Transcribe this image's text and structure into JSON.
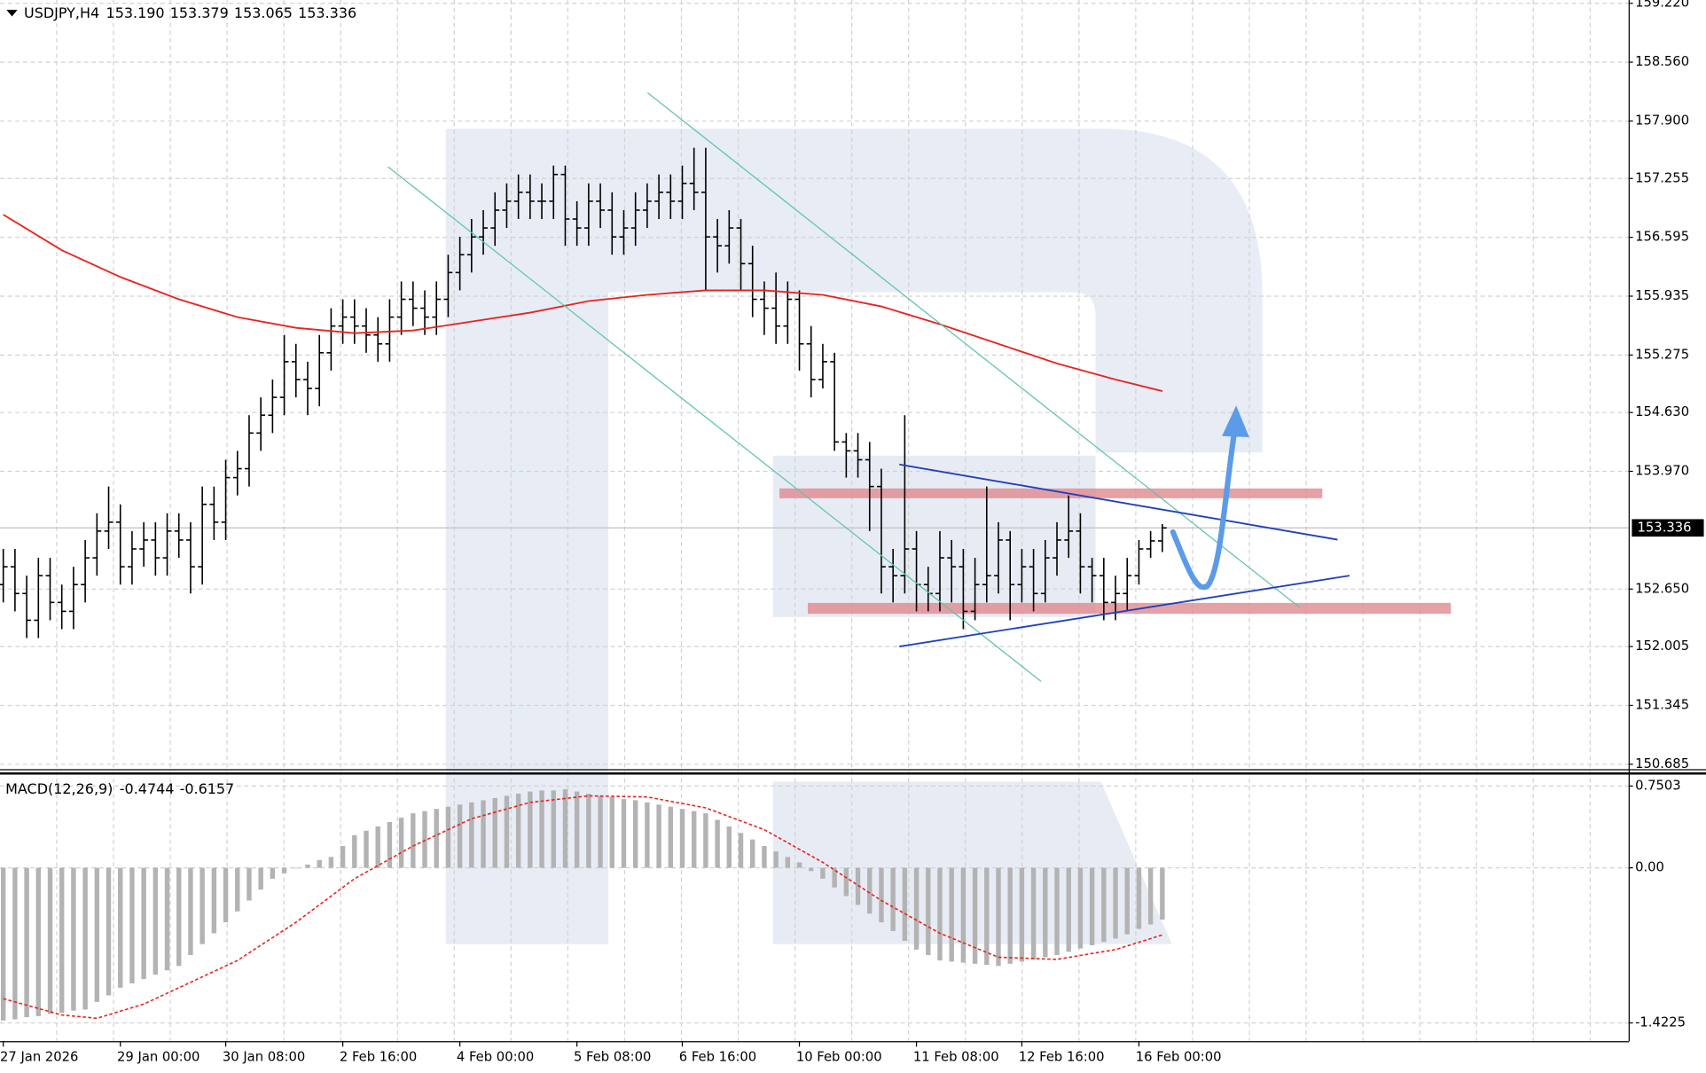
{
  "chart_data": [
    {
      "type": "ohlc",
      "symbol": "USDJPY,H4",
      "last_bar_labels": [
        "153.190",
        "153.379",
        "153.065",
        "153.336"
      ],
      "color": "#000000",
      "categories": [
        "27 Jan 2026",
        null,
        null,
        null,
        null,
        null,
        null,
        null,
        null,
        null,
        "29 Jan 00:00",
        null,
        null,
        null,
        null,
        null,
        null,
        null,
        null,
        "30 Jan 08:00",
        null,
        null,
        null,
        null,
        null,
        null,
        null,
        null,
        null,
        "2 Feb 16:00",
        null,
        null,
        null,
        null,
        null,
        null,
        null,
        null,
        null,
        "4 Feb 00:00",
        null,
        null,
        null,
        null,
        null,
        null,
        null,
        null,
        null,
        "5 Feb 08:00",
        null,
        null,
        null,
        null,
        null,
        null,
        null,
        null,
        "6 Feb 16:00",
        null,
        null,
        null,
        null,
        null,
        null,
        null,
        null,
        null,
        "10 Feb 00:00",
        null,
        null,
        null,
        null,
        null,
        null,
        null,
        null,
        null,
        "11 Feb 08:00",
        null,
        null,
        null,
        null,
        null,
        null,
        null,
        null,
        "12 Feb 16:00",
        null,
        null,
        null,
        null,
        null,
        null,
        null,
        null,
        null,
        "16 Feb 00:00",
        null,
        null
      ],
      "open": [
        152.7,
        152.9,
        152.6,
        152.3,
        152.8,
        152.5,
        152.4,
        152.7,
        153.0,
        153.3,
        153.4,
        152.9,
        153.1,
        153.2,
        153.0,
        153.3,
        153.2,
        152.9,
        153.6,
        153.4,
        153.9,
        154.0,
        154.4,
        154.6,
        154.8,
        155.2,
        155.0,
        154.9,
        155.3,
        155.6,
        155.7,
        155.6,
        155.5,
        155.4,
        155.7,
        155.9,
        155.8,
        155.7,
        155.9,
        156.2,
        156.4,
        156.6,
        156.7,
        156.9,
        157.0,
        157.1,
        157.0,
        157.0,
        157.3,
        156.8,
        156.7,
        157.0,
        156.9,
        156.6,
        156.7,
        156.9,
        157.0,
        157.1,
        157.0,
        157.2,
        157.1,
        156.6,
        156.5,
        156.7,
        156.3,
        155.9,
        155.8,
        155.6,
        155.9,
        155.4,
        155.0,
        155.2,
        154.3,
        154.2,
        154.1,
        153.8,
        152.9,
        152.8,
        153.1,
        152.7,
        152.6,
        153.0,
        152.9,
        152.4,
        152.7,
        152.8,
        153.2,
        152.7,
        152.9,
        152.6,
        153.0,
        153.2,
        153.3,
        152.9,
        152.8,
        152.5,
        152.6,
        152.8,
        153.1,
        153.19
      ],
      "high": [
        153.1,
        153.1,
        152.8,
        153.0,
        153.0,
        152.7,
        152.9,
        153.2,
        153.5,
        153.8,
        153.6,
        153.3,
        153.4,
        153.4,
        153.5,
        153.5,
        153.4,
        153.8,
        153.8,
        154.1,
        154.2,
        154.6,
        154.8,
        155.0,
        155.5,
        155.4,
        155.2,
        155.5,
        155.8,
        155.9,
        155.9,
        155.8,
        155.7,
        155.9,
        156.1,
        156.1,
        156.0,
        156.1,
        156.4,
        156.6,
        156.8,
        156.9,
        157.1,
        157.2,
        157.3,
        157.3,
        157.2,
        157.4,
        157.4,
        157.0,
        157.2,
        157.2,
        157.1,
        156.9,
        157.1,
        157.2,
        157.3,
        157.3,
        157.4,
        157.6,
        157.6,
        156.8,
        156.9,
        156.8,
        156.5,
        156.1,
        156.2,
        156.1,
        156.0,
        155.6,
        155.4,
        155.3,
        154.4,
        154.4,
        154.3,
        154.0,
        153.1,
        154.6,
        153.3,
        152.9,
        153.3,
        153.2,
        153.1,
        153.0,
        153.8,
        153.4,
        153.3,
        153.1,
        153.1,
        153.2,
        153.4,
        153.7,
        153.5,
        153.0,
        153.0,
        152.8,
        153.0,
        153.2,
        153.3,
        153.379
      ],
      "low": [
        152.5,
        152.4,
        152.1,
        152.1,
        152.3,
        152.2,
        152.2,
        152.5,
        152.8,
        153.1,
        152.7,
        152.7,
        152.9,
        152.8,
        152.8,
        153.0,
        152.6,
        152.7,
        153.2,
        153.2,
        153.7,
        153.8,
        154.2,
        154.4,
        154.6,
        154.8,
        154.6,
        154.7,
        155.1,
        155.4,
        155.4,
        155.3,
        155.2,
        155.2,
        155.5,
        155.6,
        155.5,
        155.5,
        155.7,
        156.0,
        156.2,
        156.4,
        156.5,
        156.7,
        156.8,
        156.8,
        156.8,
        156.8,
        156.5,
        156.5,
        156.5,
        156.7,
        156.4,
        156.4,
        156.5,
        156.7,
        156.8,
        156.8,
        156.8,
        156.9,
        156.0,
        156.2,
        156.3,
        156.0,
        155.7,
        155.5,
        155.4,
        155.4,
        155.1,
        154.8,
        154.9,
        154.2,
        153.9,
        153.9,
        153.3,
        152.6,
        152.5,
        152.6,
        152.4,
        152.4,
        152.4,
        152.5,
        152.2,
        152.3,
        152.5,
        152.6,
        152.3,
        152.5,
        152.4,
        152.5,
        152.8,
        153.0,
        152.6,
        152.5,
        152.3,
        152.3,
        152.4,
        152.7,
        153.0,
        153.065
      ],
      "close": [
        152.9,
        152.6,
        152.3,
        152.8,
        152.5,
        152.4,
        152.7,
        153.0,
        153.3,
        153.4,
        152.9,
        153.1,
        153.2,
        153.0,
        153.3,
        153.2,
        152.9,
        153.6,
        153.4,
        153.9,
        154.0,
        154.4,
        154.6,
        154.8,
        155.2,
        155.0,
        154.9,
        155.3,
        155.6,
        155.7,
        155.6,
        155.5,
        155.4,
        155.7,
        155.9,
        155.8,
        155.7,
        155.9,
        156.2,
        156.4,
        156.6,
        156.7,
        156.9,
        157.0,
        157.1,
        157.0,
        157.0,
        157.3,
        156.8,
        156.7,
        157.0,
        156.9,
        156.6,
        156.7,
        156.9,
        157.0,
        157.1,
        157.0,
        157.2,
        157.1,
        156.6,
        156.5,
        156.7,
        156.3,
        155.9,
        155.8,
        155.6,
        155.9,
        155.4,
        155.0,
        155.2,
        154.3,
        154.2,
        154.1,
        153.8,
        152.9,
        152.8,
        153.1,
        152.7,
        152.6,
        153.0,
        152.9,
        152.4,
        152.7,
        152.8,
        153.2,
        152.7,
        152.9,
        152.6,
        153.0,
        153.2,
        153.3,
        152.9,
        152.8,
        152.5,
        152.6,
        152.8,
        153.1,
        153.19,
        153.336
      ],
      "ma": {
        "color": "#e8231f",
        "x": [
          0,
          5,
          10,
          15,
          20,
          25,
          30,
          35,
          40,
          45,
          50,
          55,
          60,
          65,
          70,
          75,
          80,
          85,
          90,
          95,
          99
        ],
        "values": [
          156.85,
          156.45,
          156.15,
          155.9,
          155.7,
          155.58,
          155.52,
          155.55,
          155.65,
          155.75,
          155.88,
          155.95,
          156.0,
          156.0,
          155.95,
          155.82,
          155.62,
          155.4,
          155.18,
          155.0,
          154.87
        ]
      },
      "ylim": [
        150.636,
        159.257
      ],
      "yticks": [
        {
          "value": 159.22,
          "label": "159.220"
        },
        {
          "value": 158.56,
          "label": "158.560"
        },
        {
          "value": 157.9,
          "label": "157.900"
        },
        157.255,
        156.595,
        155.935,
        155.275,
        {
          "value": 154.63,
          "label": "154.630"
        },
        {
          "value": 153.97,
          "label": "153.970"
        },
        {
          "value": 152.65,
          "label": "152.650"
        },
        152.005,
        151.345,
        150.685
      ],
      "grid": true
    },
    {
      "type": "macd",
      "title": "MACD(12,26,9)",
      "histogram": {
        "color": "#b3b3b3",
        "values": [
          -1.4,
          -1.39,
          -1.37,
          -1.36,
          -1.34,
          -1.33,
          -1.31,
          -1.3,
          -1.23,
          -1.17,
          -1.1,
          -1.06,
          -1.02,
          -0.98,
          -0.94,
          -0.9,
          -0.8,
          -0.7,
          -0.6,
          -0.5,
          -0.4,
          -0.3,
          -0.2,
          -0.1,
          -0.05,
          0.0,
          0.03,
          0.07,
          0.1,
          0.2,
          0.3,
          0.34,
          0.38,
          0.42,
          0.46,
          0.5,
          0.52,
          0.54,
          0.56,
          0.58,
          0.6,
          0.62,
          0.64,
          0.66,
          0.68,
          0.7,
          0.71,
          0.71,
          0.72,
          0.7,
          0.68,
          0.66,
          0.65,
          0.63,
          0.62,
          0.6,
          0.58,
          0.56,
          0.54,
          0.52,
          0.5,
          0.44,
          0.38,
          0.32,
          0.26,
          0.2,
          0.15,
          0.1,
          0.05,
          -0.03,
          -0.1,
          -0.18,
          -0.26,
          -0.34,
          -0.42,
          -0.5,
          -0.58,
          -0.67,
          -0.75,
          -0.8,
          -0.85,
          -0.86,
          -0.87,
          -0.88,
          -0.89,
          -0.9,
          -0.88,
          -0.86,
          -0.84,
          -0.82,
          -0.8,
          -0.77,
          -0.74,
          -0.71,
          -0.68,
          -0.65,
          -0.61,
          -0.56,
          -0.52,
          -0.4744
        ]
      },
      "signal": {
        "color": "#e8231f",
        "x": [
          0,
          5,
          8,
          12,
          20,
          25,
          30,
          35,
          40,
          45,
          50,
          55,
          60,
          65,
          70,
          75,
          80,
          85,
          90,
          95,
          99
        ],
        "values": [
          -1.2,
          -1.35,
          -1.38,
          -1.25,
          -0.85,
          -0.5,
          -0.1,
          0.2,
          0.45,
          0.6,
          0.66,
          0.65,
          0.55,
          0.35,
          0.05,
          -0.3,
          -0.6,
          -0.82,
          -0.84,
          -0.75,
          -0.6157
        ]
      },
      "ylim": [
        -1.59,
        0.85
      ],
      "yticks": [
        0.7503,
        {
          "value": 0,
          "label": "0.00"
        },
        -1.4225
      ],
      "grid": true
    }
  ]
}
